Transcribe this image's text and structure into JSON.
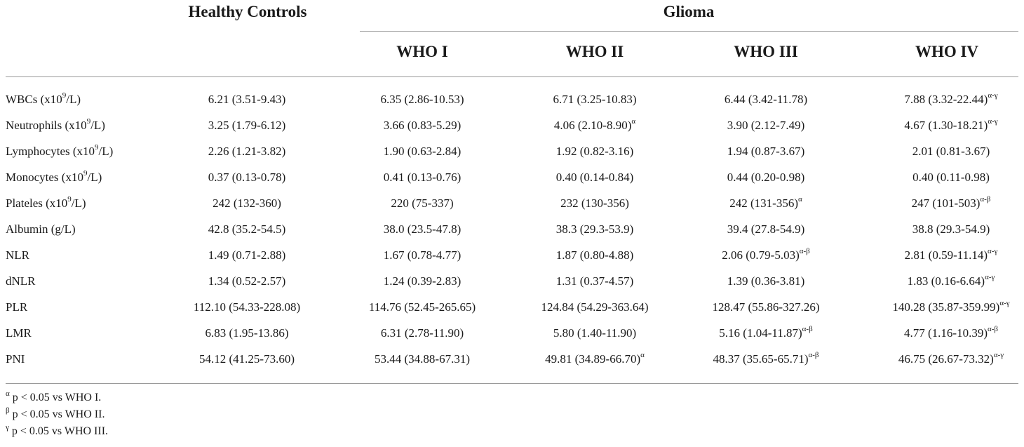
{
  "header": {
    "group_healthy": "Healthy Controls",
    "group_glioma": "Glioma",
    "subgroups": [
      "WHO I",
      "WHO II",
      "WHO III",
      "WHO IV"
    ]
  },
  "rows": [
    {
      "label": "WBCs (x10",
      "label_sup": "9",
      "label_end": "/L)",
      "values": [
        {
          "v": "6.21 (3.51-9.43)",
          "s": ""
        },
        {
          "v": "6.35 (2.86-10.53)",
          "s": ""
        },
        {
          "v": "6.71 (3.25-10.83)",
          "s": ""
        },
        {
          "v": "6.44 (3.42-11.78)",
          "s": ""
        },
        {
          "v": "7.88 (3.32-22.44)",
          "s": "α-γ"
        }
      ]
    },
    {
      "label": "Neutrophils (x10",
      "label_sup": "9",
      "label_end": "/L)",
      "values": [
        {
          "v": "3.25 (1.79-6.12)",
          "s": ""
        },
        {
          "v": "3.66 (0.83-5.29)",
          "s": ""
        },
        {
          "v": "4.06 (2.10-8.90)",
          "s": "α"
        },
        {
          "v": "3.90 (2.12-7.49)",
          "s": ""
        },
        {
          "v": "4.67 (1.30-18.21)",
          "s": "α-γ"
        }
      ]
    },
    {
      "label": "Lymphocytes (x10",
      "label_sup": "9",
      "label_end": "/L)",
      "values": [
        {
          "v": "2.26 (1.21-3.82)",
          "s": ""
        },
        {
          "v": "1.90 (0.63-2.84)",
          "s": ""
        },
        {
          "v": "1.92 (0.82-3.16)",
          "s": ""
        },
        {
          "v": "1.94 (0.87-3.67)",
          "s": ""
        },
        {
          "v": "2.01 (0.81-3.67)",
          "s": ""
        }
      ]
    },
    {
      "label": "Monocytes (x10",
      "label_sup": "9",
      "label_end": "/L)",
      "values": [
        {
          "v": "0.37 (0.13-0.78)",
          "s": ""
        },
        {
          "v": "0.41 (0.13-0.76)",
          "s": ""
        },
        {
          "v": "0.40 (0.14-0.84)",
          "s": ""
        },
        {
          "v": "0.44 (0.20-0.98)",
          "s": ""
        },
        {
          "v": "0.40 (0.11-0.98)",
          "s": ""
        }
      ]
    },
    {
      "label": "Plateles (x10",
      "label_sup": "9",
      "label_end": "/L)",
      "values": [
        {
          "v": "242 (132-360)",
          "s": ""
        },
        {
          "v": "220 (75-337)",
          "s": ""
        },
        {
          "v": "232 (130-356)",
          "s": ""
        },
        {
          "v": "242 (131-356)",
          "s": "α"
        },
        {
          "v": "247 (101-503)",
          "s": "α-β"
        }
      ]
    },
    {
      "label": "Albumin (g/L)",
      "label_sup": "",
      "label_end": "",
      "values": [
        {
          "v": "42.8 (35.2-54.5)",
          "s": ""
        },
        {
          "v": "38.0 (23.5-47.8)",
          "s": ""
        },
        {
          "v": "38.3 (29.3-53.9)",
          "s": ""
        },
        {
          "v": "39.4 (27.8-54.9)",
          "s": ""
        },
        {
          "v": "38.8 (29.3-54.9)",
          "s": ""
        }
      ]
    },
    {
      "label": "NLR",
      "label_sup": "",
      "label_end": "",
      "values": [
        {
          "v": "1.49 (0.71-2.88)",
          "s": ""
        },
        {
          "v": "1.67 (0.78-4.77)",
          "s": ""
        },
        {
          "v": "1.87 (0.80-4.88)",
          "s": ""
        },
        {
          "v": "2.06 (0.79-5.03)",
          "s": "α-β"
        },
        {
          "v": "2.81 (0.59-11.14)",
          "s": "α-γ"
        }
      ]
    },
    {
      "label": "dNLR",
      "label_sup": "",
      "label_end": "",
      "values": [
        {
          "v": "1.34 (0.52-2.57)",
          "s": ""
        },
        {
          "v": "1.24 (0.39-2.83)",
          "s": ""
        },
        {
          "v": "1.31 (0.37-4.57)",
          "s": ""
        },
        {
          "v": "1.39 (0.36-3.81)",
          "s": ""
        },
        {
          "v": "1.83 (0.16-6.64)",
          "s": "α-γ"
        }
      ]
    },
    {
      "label": "PLR",
      "label_sup": "",
      "label_end": "",
      "values": [
        {
          "v": "112.10 (54.33-228.08)",
          "s": ""
        },
        {
          "v": "114.76 (52.45-265.65)",
          "s": ""
        },
        {
          "v": "124.84 (54.29-363.64)",
          "s": ""
        },
        {
          "v": "128.47 (55.86-327.26)",
          "s": ""
        },
        {
          "v": "140.28 (35.87-359.99)",
          "s": "α-γ"
        }
      ]
    },
    {
      "label": "LMR",
      "label_sup": "",
      "label_end": "",
      "values": [
        {
          "v": "6.83 (1.95-13.86)",
          "s": ""
        },
        {
          "v": "6.31 (2.78-11.90)",
          "s": ""
        },
        {
          "v": "5.80 (1.40-11.90)",
          "s": ""
        },
        {
          "v": "5.16 (1.04-11.87)",
          "s": "α-β"
        },
        {
          "v": "4.77 (1.16-10.39)",
          "s": "α-β"
        }
      ]
    },
    {
      "label": "PNI",
      "label_sup": "",
      "label_end": "",
      "values": [
        {
          "v": "54.12 (41.25-73.60)",
          "s": ""
        },
        {
          "v": "53.44 (34.88-67.31)",
          "s": ""
        },
        {
          "v": "49.81 (34.89-66.70)",
          "s": "α"
        },
        {
          "v": "48.37 (35.65-65.71)",
          "s": "α-β"
        },
        {
          "v": "46.75 (26.67-73.32)",
          "s": "α-γ"
        }
      ]
    }
  ],
  "footnotes": [
    {
      "sym": "α",
      "text": " p < 0.05 vs WHO I."
    },
    {
      "sym": "β",
      "text": " p < 0.05 vs WHO II."
    },
    {
      "sym": "γ",
      "text": " p < 0.05 vs WHO III."
    }
  ]
}
